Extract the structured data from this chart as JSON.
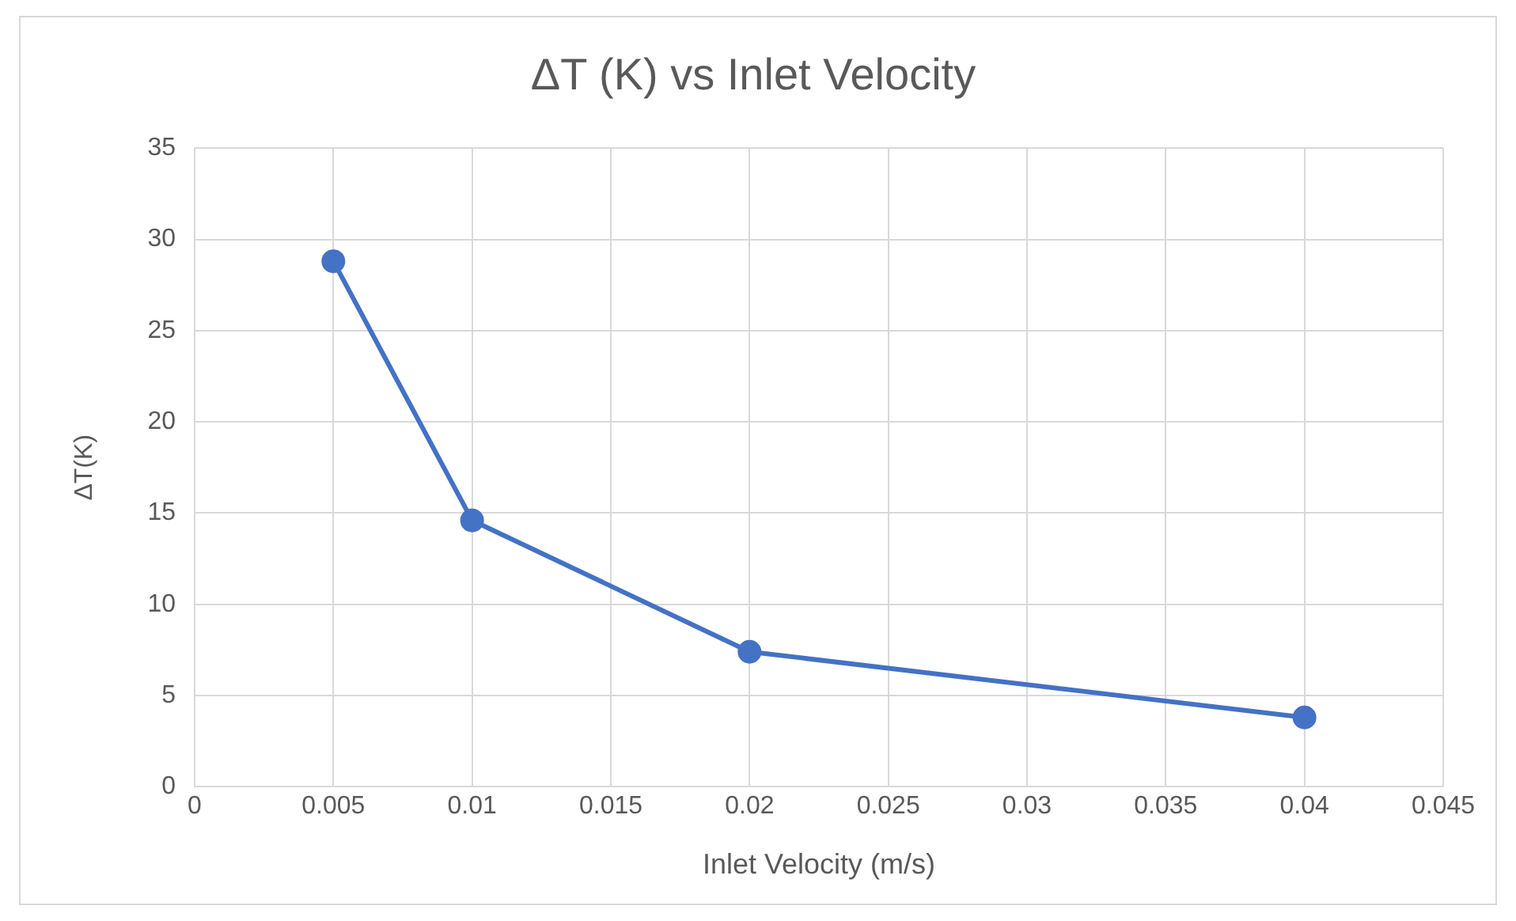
{
  "chart_data": {
    "type": "line",
    "title": "ΔT (K) vs Inlet Velocity",
    "xlabel": "Inlet Velocity (m/s)",
    "ylabel": "ΔT(K)",
    "x": [
      0.005,
      0.01,
      0.02,
      0.04
    ],
    "series": [
      {
        "color": "#4472c4",
        "values": [
          28.8,
          14.6,
          7.4,
          3.8
        ]
      }
    ],
    "xlim": [
      0,
      0.045
    ],
    "xticks": [
      0,
      0.005,
      0.01,
      0.015,
      0.02,
      0.025,
      0.03,
      0.035,
      0.04,
      0.045
    ],
    "ylim": [
      0,
      35
    ],
    "yticks": [
      0,
      5,
      10,
      15,
      20,
      25,
      30,
      35
    ],
    "grid": true,
    "legend": false,
    "marker": "circle",
    "line_style": "solid"
  }
}
